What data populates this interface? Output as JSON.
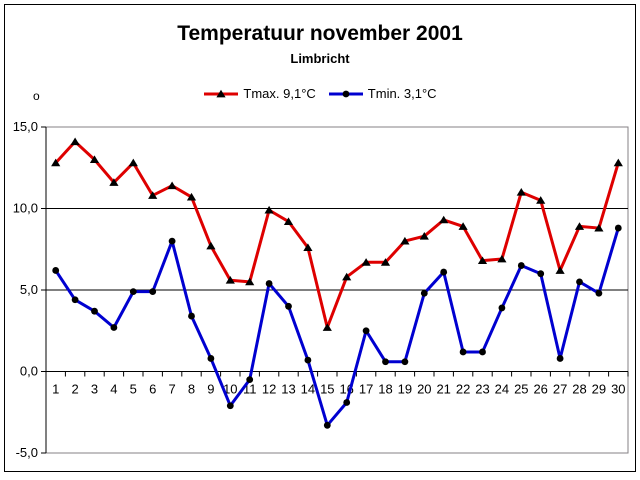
{
  "window": {
    "background": "#FFFFFF",
    "border_color": "#000000"
  },
  "header": {
    "title": "Temperatuur november 2001",
    "subtitle": "Limbricht"
  },
  "axis_unit_label": "o",
  "chart_data": {
    "type": "line",
    "title": "Temperatuur november 2001",
    "subtitle": "Limbricht",
    "categories": [
      "1",
      "2",
      "3",
      "4",
      "5",
      "6",
      "7",
      "8",
      "9",
      "10",
      "11",
      "12",
      "13",
      "14",
      "15",
      "16",
      "17",
      "18",
      "19",
      "20",
      "21",
      "22",
      "23",
      "24",
      "25",
      "26",
      "27",
      "28",
      "29",
      "30"
    ],
    "series": [
      {
        "name": "Tmax. 9,1°C",
        "color": "#DE0000",
        "marker": "triangle",
        "marker_color": "#000000",
        "values": [
          12.8,
          14.1,
          13.0,
          11.6,
          12.8,
          10.8,
          11.4,
          10.7,
          7.7,
          5.6,
          5.5,
          9.9,
          9.2,
          7.6,
          2.7,
          5.8,
          6.7,
          6.7,
          8.0,
          8.3,
          9.3,
          8.9,
          6.8,
          6.9,
          11.0,
          10.5,
          6.2,
          8.9,
          8.8,
          12.8
        ]
      },
      {
        "name": "Tmin. 3,1°C",
        "color": "#0000D0",
        "marker": "circle",
        "marker_color": "#000000",
        "values": [
          6.2,
          4.4,
          3.7,
          2.7,
          4.9,
          4.9,
          8.0,
          3.4,
          0.8,
          -2.1,
          -0.5,
          5.4,
          4.0,
          0.7,
          -3.3,
          -1.9,
          2.5,
          0.6,
          0.6,
          4.8,
          6.1,
          1.2,
          1.2,
          3.9,
          6.5,
          6.0,
          0.8,
          5.5,
          4.8,
          8.8
        ]
      }
    ],
    "xlabel": "",
    "ylabel": "o",
    "ylim": [
      -5,
      15
    ],
    "yticks": [
      {
        "value": 15,
        "label": "15,0"
      },
      {
        "value": 10,
        "label": "10,0"
      },
      {
        "value": 5,
        "label": "5,0"
      },
      {
        "value": 0,
        "label": "0,0"
      },
      {
        "value": -5,
        "label": "-5,0"
      }
    ],
    "grid": true,
    "legend_position": "top-center",
    "gridline_color": "#000000",
    "plot_border_color": "#848284"
  }
}
